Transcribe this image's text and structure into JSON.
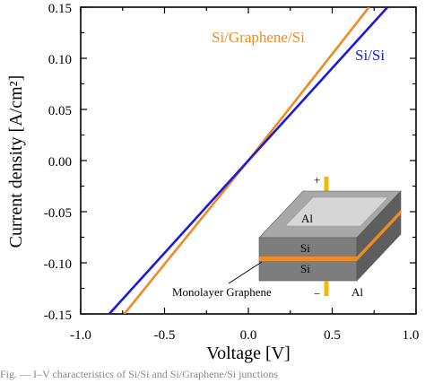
{
  "chart_data": {
    "type": "line",
    "xlabel": "Voltage [V]",
    "ylabel": "Current density [A/cm²]",
    "xlim": [
      -1.0,
      1.0
    ],
    "ylim": [
      -0.15,
      0.15
    ],
    "x_ticks": [
      "-1.0",
      "-0.5",
      "0.0",
      "0.5",
      "1.0"
    ],
    "y_ticks": [
      "0.15",
      "0.10",
      "0.05",
      "0.00",
      "-0.05",
      "-0.10",
      "-0.15"
    ],
    "series": [
      {
        "name": "Si/Graphene/Si",
        "color": "#f08a24",
        "x": [
          -0.74,
          0.0,
          0.72
        ],
        "y": [
          -0.15,
          0.0,
          0.15
        ]
      },
      {
        "name": "Si/Si",
        "color": "#1a1adb",
        "x": [
          -0.83,
          0.0,
          0.83
        ],
        "y": [
          -0.15,
          0.0,
          0.15
        ]
      }
    ],
    "grid": false,
    "legend": "labels beside lines, top-right"
  },
  "inset": {
    "labels": {
      "top_electrode": "Al",
      "si_upper": "Si",
      "si_lower": "Si",
      "bottom_electrode": "Al",
      "graphene": "Monolayer Graphene",
      "plus": "+",
      "minus": "−"
    },
    "colors": {
      "al_top": "#d6d6d6",
      "block_top": "#a8a8a8",
      "block_front": "#7d7d7d",
      "block_side": "#5e5e5e",
      "graphene": "#f08a24",
      "lead": "#f5b800"
    }
  },
  "caption": "Fig. — I–V characteristics of Si/Si and Si/Graphene/Si junctions"
}
